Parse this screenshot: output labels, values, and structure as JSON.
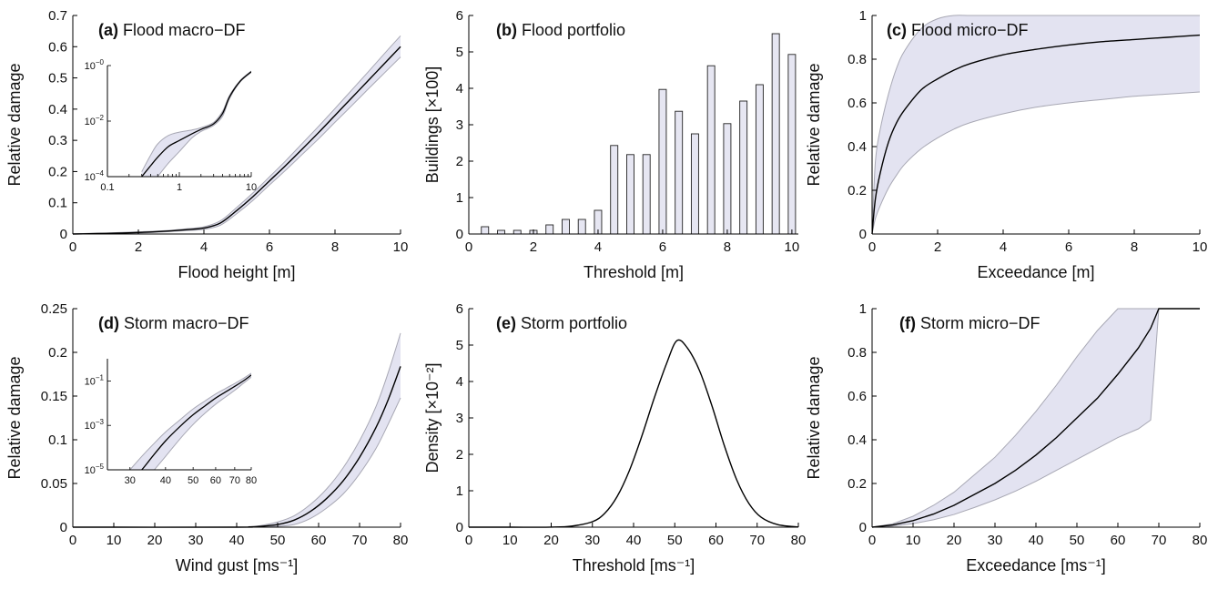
{
  "chart_data": [
    {
      "id": "a",
      "type": "line",
      "panel_label": "(a)",
      "title": "Flood macro−DF",
      "xlabel": "Flood height [m]",
      "ylabel": "Relative damage",
      "xlim": [
        0,
        10
      ],
      "ylim": [
        0,
        0.7
      ],
      "xticks": [
        "0",
        "2",
        "4",
        "6",
        "8",
        "10"
      ],
      "yticks": [
        "0",
        "0.1",
        "0.2",
        "0.3",
        "0.4",
        "0.5",
        "0.6",
        "0.7"
      ],
      "x": [
        0,
        0.5,
        1,
        1.5,
        2,
        2.5,
        3,
        3.5,
        4,
        4.5,
        5,
        5.5,
        6,
        6.5,
        7,
        7.5,
        8,
        8.5,
        9,
        9.5,
        10
      ],
      "series": [
        {
          "role": "mean",
          "values": [
            0,
            0.001,
            0.002,
            0.003,
            0.005,
            0.007,
            0.01,
            0.014,
            0.019,
            0.035,
            0.075,
            0.12,
            0.17,
            0.22,
            0.272,
            0.325,
            0.38,
            0.435,
            0.49,
            0.545,
            0.6
          ]
        },
        {
          "role": "band_upper",
          "values": [
            0.0005,
            0.002,
            0.003,
            0.005,
            0.007,
            0.009,
            0.012,
            0.017,
            0.023,
            0.042,
            0.085,
            0.132,
            0.183,
            0.235,
            0.29,
            0.345,
            0.402,
            0.46,
            0.518,
            0.577,
            0.635
          ]
        },
        {
          "role": "band_lower",
          "values": [
            0,
            0,
            0.001,
            0.002,
            0.003,
            0.005,
            0.008,
            0.011,
            0.015,
            0.028,
            0.065,
            0.108,
            0.157,
            0.205,
            0.255,
            0.305,
            0.358,
            0.41,
            0.463,
            0.515,
            0.567
          ]
        }
      ],
      "inset": {
        "xscale": "log",
        "yscale": "log",
        "xlim": [
          0.1,
          10
        ],
        "ylim": [
          0.0001,
          1
        ],
        "xticks": [
          "0.1",
          "1",
          "10"
        ],
        "yticks": [
          {
            "base": "10",
            "exp": "−4"
          },
          {
            "base": "10",
            "exp": "−2"
          },
          {
            "base": "10",
            "exp": "−0"
          }
        ],
        "x": [
          0.3,
          0.4,
          0.5,
          0.7,
          1,
          1.5,
          2,
          3,
          4,
          5,
          7,
          10
        ],
        "mean": [
          0.0001,
          0.00025,
          0.0005,
          0.0012,
          0.002,
          0.0035,
          0.005,
          0.008,
          0.019,
          0.075,
          0.27,
          0.6
        ],
        "band_upper": [
          0.00015,
          0.0006,
          0.0015,
          0.003,
          0.004,
          0.0048,
          0.0058,
          0.009,
          0.023,
          0.085,
          0.29,
          0.635
        ],
        "band_lower": [
          null,
          null,
          0.0001,
          0.0003,
          0.0008,
          0.0025,
          0.0042,
          0.007,
          0.015,
          0.065,
          0.255,
          0.567
        ]
      }
    },
    {
      "id": "b",
      "type": "bar",
      "panel_label": "(b)",
      "title": "Flood portfolio",
      "xlabel": "Threshold [m]",
      "ylabel": "Buildings [×100]",
      "xlim": [
        0,
        10.2
      ],
      "ylim": [
        0,
        6
      ],
      "xticks": [
        "0",
        "2",
        "4",
        "6",
        "8",
        "10"
      ],
      "yticks": [
        "0",
        "1",
        "2",
        "3",
        "4",
        "5",
        "6"
      ],
      "x": [
        0.5,
        1,
        1.5,
        2,
        2.5,
        3,
        3.5,
        4,
        4.5,
        5,
        5.5,
        6,
        6.5,
        7,
        7.5,
        8,
        8.5,
        9,
        9.5,
        10
      ],
      "values": [
        0.2,
        0.1,
        0.1,
        0.1,
        0.25,
        0.4,
        0.4,
        0.65,
        2.43,
        2.18,
        2.18,
        3.97,
        3.37,
        2.75,
        4.62,
        3.03,
        3.65,
        4.1,
        5.5,
        4.93
      ]
    },
    {
      "id": "c",
      "type": "line",
      "panel_label": "(c)",
      "title": "Flood micro−DF",
      "xlabel": "Exceedance [m]",
      "ylabel": "Relative damage",
      "xlim": [
        0,
        10
      ],
      "ylim": [
        0,
        1
      ],
      "xticks": [
        "0",
        "2",
        "4",
        "6",
        "8",
        "10"
      ],
      "yticks": [
        "0",
        "0.2",
        "0.4",
        "0.6",
        "0.8",
        "1"
      ],
      "x": [
        0,
        0.1,
        0.25,
        0.5,
        0.75,
        1,
        1.5,
        2,
        2.5,
        3,
        4,
        5,
        6,
        7,
        8,
        9,
        10
      ],
      "series": [
        {
          "role": "mean",
          "values": [
            0,
            0.16,
            0.28,
            0.42,
            0.51,
            0.57,
            0.66,
            0.71,
            0.75,
            0.78,
            0.82,
            0.845,
            0.865,
            0.88,
            0.89,
            0.9,
            0.91
          ]
        },
        {
          "role": "band_upper",
          "values": [
            0,
            0.33,
            0.48,
            0.64,
            0.76,
            0.84,
            0.94,
            0.985,
            1,
            1,
            1,
            1,
            1,
            1,
            1,
            1,
            1
          ]
        },
        {
          "role": "band_lower",
          "values": [
            0,
            0.07,
            0.13,
            0.21,
            0.27,
            0.32,
            0.39,
            0.44,
            0.48,
            0.51,
            0.55,
            0.58,
            0.6,
            0.615,
            0.63,
            0.64,
            0.65
          ]
        }
      ]
    },
    {
      "id": "d",
      "type": "line",
      "panel_label": "(d)",
      "title": "Storm macro−DF",
      "xlabel": "Wind gust [ms⁻¹]",
      "ylabel": "Relative damage",
      "xlim": [
        0,
        80
      ],
      "ylim": [
        0,
        0.25
      ],
      "xticks": [
        "0",
        "10",
        "20",
        "30",
        "40",
        "50",
        "60",
        "70",
        "80"
      ],
      "yticks": [
        "0",
        "0.05",
        "0.1",
        "0.15",
        "0.2",
        "0.25"
      ],
      "x": [
        0,
        40,
        43,
        46,
        50,
        54,
        58,
        62,
        66,
        70,
        74,
        77,
        80
      ],
      "series": [
        {
          "role": "mean",
          "values": [
            0,
            0,
            0.0003,
            0.001,
            0.003,
            0.008,
            0.018,
            0.033,
            0.053,
            0.08,
            0.114,
            0.146,
            0.184
          ]
        },
        {
          "role": "band_upper",
          "values": [
            0,
            0,
            0.0006,
            0.002,
            0.006,
            0.013,
            0.026,
            0.044,
            0.068,
            0.099,
            0.138,
            0.177,
            0.222
          ]
        },
        {
          "role": "band_lower",
          "values": [
            0,
            0,
            0,
            0.0003,
            0.001,
            0.003,
            0.01,
            0.022,
            0.038,
            0.061,
            0.09,
            0.118,
            0.148
          ]
        }
      ],
      "inset": {
        "xscale": "log",
        "yscale": "log",
        "xlim": [
          25,
          80
        ],
        "ylim": [
          1e-05,
          1
        ],
        "xticks": [
          "30",
          "40",
          "50",
          "60",
          "70",
          "80"
        ],
        "yticks": [
          {
            "base": "10",
            "exp": "−5"
          },
          {
            "base": "10",
            "exp": "−3"
          },
          {
            "base": "10",
            "exp": "−1"
          }
        ],
        "x": [
          30,
          33,
          36,
          40,
          45,
          50,
          55,
          60,
          65,
          70,
          75,
          80
        ],
        "mean": [
          3e-06,
          1e-05,
          4e-05,
          0.0002,
          0.0009,
          0.003,
          0.0075,
          0.017,
          0.032,
          0.057,
          0.1,
          0.184
        ],
        "band_upper": [
          1e-05,
          4e-05,
          0.00013,
          0.0005,
          0.0018,
          0.0055,
          0.0125,
          0.026,
          0.046,
          0.077,
          0.13,
          0.222
        ],
        "band_lower": [
          null,
          null,
          8e-06,
          4e-05,
          0.00025,
          0.0011,
          0.0035,
          0.009,
          0.019,
          0.038,
          0.077,
          0.148
        ]
      }
    },
    {
      "id": "e",
      "type": "line",
      "panel_label": "(e)",
      "title": "Storm portfolio",
      "xlabel": "Threshold [ms⁻¹]",
      "ylabel": "Density [×10⁻²]",
      "xlim": [
        0,
        80
      ],
      "ylim": [
        0,
        6
      ],
      "xticks": [
        "0",
        "10",
        "20",
        "30",
        "40",
        "50",
        "60",
        "70",
        "80"
      ],
      "yticks": [
        "0",
        "1",
        "2",
        "3",
        "4",
        "5",
        "6"
      ],
      "x": [
        0,
        10,
        20,
        25,
        30,
        33,
        36,
        39,
        42,
        45,
        48,
        50.5,
        53,
        56,
        59,
        62,
        65,
        68,
        71,
        75,
        80
      ],
      "series": [
        {
          "role": "density",
          "values": [
            0,
            0,
            0.002,
            0.03,
            0.15,
            0.38,
            0.84,
            1.56,
            2.5,
            3.54,
            4.49,
            5.12,
            4.93,
            4.3,
            3.34,
            2.25,
            1.31,
            0.65,
            0.27,
            0.07,
            0.005
          ]
        }
      ]
    },
    {
      "id": "f",
      "type": "line",
      "panel_label": "(f)",
      "title": "Storm micro−DF",
      "xlabel": "Exceedance [ms⁻¹]",
      "ylabel": "Relative damage",
      "xlim": [
        0,
        80
      ],
      "ylim": [
        0,
        1
      ],
      "xticks": [
        "0",
        "10",
        "20",
        "30",
        "40",
        "50",
        "60",
        "70",
        "80"
      ],
      "yticks": [
        "0",
        "0.2",
        "0.4",
        "0.6",
        "0.8",
        "1"
      ],
      "x": [
        0,
        5,
        10,
        15,
        20,
        25,
        30,
        35,
        40,
        45,
        50,
        55,
        60,
        65,
        68,
        70,
        80
      ],
      "series": [
        {
          "role": "mean",
          "values": [
            0,
            0.01,
            0.03,
            0.06,
            0.1,
            0.15,
            0.2,
            0.26,
            0.33,
            0.41,
            0.5,
            0.59,
            0.7,
            0.82,
            0.91,
            1,
            1
          ]
        },
        {
          "role": "band_upper",
          "values": [
            0,
            0.015,
            0.05,
            0.1,
            0.16,
            0.24,
            0.32,
            0.42,
            0.53,
            0.65,
            0.78,
            0.9,
            1,
            1,
            1,
            1,
            1
          ]
        },
        {
          "role": "band_lower",
          "values": [
            0,
            0.005,
            0.016,
            0.034,
            0.058,
            0.09,
            0.125,
            0.165,
            0.21,
            0.26,
            0.31,
            0.36,
            0.41,
            0.45,
            0.49,
            1,
            1
          ]
        }
      ]
    }
  ]
}
